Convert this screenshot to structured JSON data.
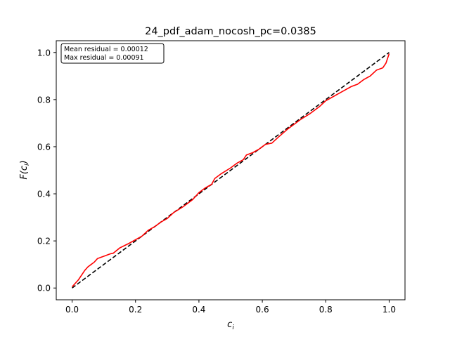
{
  "chart_data": {
    "type": "line",
    "title": "24_pdf_adam_nocosh_pc=0.0385",
    "xlabel": "c_i",
    "ylabel": "F(c_i)",
    "xlim": [
      -0.05,
      1.05
    ],
    "ylim": [
      -0.05,
      1.05
    ],
    "xticks": [
      0.0,
      0.2,
      0.4,
      0.6,
      0.8,
      1.0
    ],
    "yticks": [
      0.0,
      0.2,
      0.4,
      0.6,
      0.8,
      1.0
    ],
    "xtick_labels": [
      "0.0",
      "0.2",
      "0.4",
      "0.6",
      "0.8",
      "1.0"
    ],
    "ytick_labels": [
      "0.0",
      "0.2",
      "0.4",
      "0.6",
      "0.8",
      "1.0"
    ],
    "grid": false,
    "annotation": {
      "lines": [
        "Mean residual = 0.00012",
        "Max residual = 0.00091"
      ],
      "placement": "top-left"
    },
    "series": [
      {
        "style": "dashed",
        "color": "#000000",
        "x": [
          0.0,
          1.0
        ],
        "y": [
          0.0,
          1.0
        ]
      },
      {
        "style": "solid",
        "color": "#ff0000",
        "x": [
          0.0,
          0.01,
          0.02,
          0.03,
          0.04,
          0.05,
          0.06,
          0.07,
          0.08,
          0.09,
          0.1,
          0.12,
          0.13,
          0.15,
          0.18,
          0.2,
          0.22,
          0.24,
          0.26,
          0.28,
          0.3,
          0.32,
          0.35,
          0.38,
          0.4,
          0.42,
          0.44,
          0.45,
          0.47,
          0.5,
          0.52,
          0.54,
          0.55,
          0.57,
          0.59,
          0.61,
          0.63,
          0.65,
          0.68,
          0.7,
          0.72,
          0.75,
          0.78,
          0.8,
          0.82,
          0.84,
          0.86,
          0.88,
          0.9,
          0.92,
          0.94,
          0.96,
          0.98,
          0.99,
          1.0
        ],
        "y": [
          0.005,
          0.02,
          0.035,
          0.055,
          0.075,
          0.09,
          0.1,
          0.11,
          0.125,
          0.13,
          0.135,
          0.145,
          0.148,
          0.17,
          0.19,
          0.205,
          0.22,
          0.245,
          0.26,
          0.28,
          0.295,
          0.32,
          0.345,
          0.375,
          0.405,
          0.425,
          0.44,
          0.465,
          0.485,
          0.51,
          0.53,
          0.545,
          0.565,
          0.575,
          0.59,
          0.61,
          0.615,
          0.64,
          0.675,
          0.695,
          0.715,
          0.74,
          0.77,
          0.795,
          0.81,
          0.825,
          0.84,
          0.855,
          0.865,
          0.885,
          0.9,
          0.925,
          0.935,
          0.955,
          0.995
        ]
      }
    ]
  }
}
